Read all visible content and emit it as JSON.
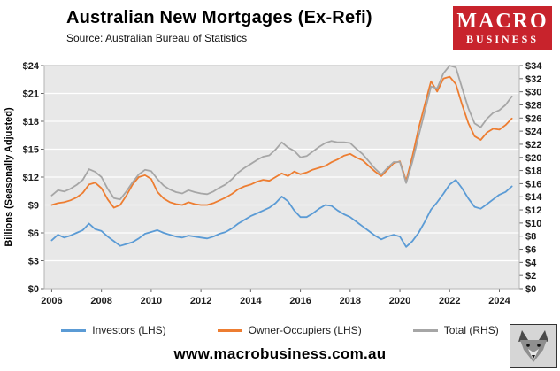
{
  "header": {
    "title": "Australian New Mortgages (Ex-Refi)",
    "source": "Source: Australian Bureau of Statistics",
    "logo": {
      "line1": "MACRO",
      "line2": "BUSINESS",
      "bg_color": "#c8232c",
      "text_color": "#ffffff"
    }
  },
  "chart_data": {
    "type": "line",
    "title": "Australian New Mortgages (Ex-Refi)",
    "ylabel_left": "Billions (Seasonally Adjusted)",
    "grid": true,
    "plot_bg": "#e8e8e8",
    "legend_position": "bottom",
    "x_range": [
      2005.7,
      2024.8
    ],
    "x_ticks": [
      2006,
      2008,
      2010,
      2012,
      2014,
      2016,
      2018,
      2020,
      2022,
      2024
    ],
    "x_tick_labels": [
      "2006",
      "2008",
      "2010",
      "2012",
      "2014",
      "2016",
      "2018",
      "2020",
      "2022",
      "2024"
    ],
    "left_axis": {
      "min": 0,
      "max": 24,
      "tick_step": 3,
      "ticks": [
        0,
        3,
        6,
        9,
        12,
        15,
        18,
        21,
        24
      ],
      "tick_labels": [
        "$0",
        "$3",
        "$6",
        "$9",
        "$12",
        "$15",
        "$18",
        "$21",
        "$24"
      ]
    },
    "right_axis": {
      "min": 0,
      "max": 34,
      "tick_step": 2,
      "ticks": [
        0,
        2,
        4,
        6,
        8,
        10,
        12,
        14,
        16,
        18,
        20,
        22,
        24,
        26,
        28,
        30,
        32,
        34
      ],
      "tick_labels": [
        "$0",
        "$2",
        "$4",
        "$6",
        "$8",
        "$10",
        "$12",
        "$14",
        "$16",
        "$18",
        "$20",
        "$22",
        "$24",
        "$26",
        "$28",
        "$30",
        "$32",
        "$34"
      ]
    },
    "x": [
      2006,
      2006.25,
      2006.5,
      2006.75,
      2007,
      2007.25,
      2007.5,
      2007.75,
      2008,
      2008.25,
      2008.5,
      2008.75,
      2009,
      2009.25,
      2009.5,
      2009.75,
      2010,
      2010.25,
      2010.5,
      2010.75,
      2011,
      2011.25,
      2011.5,
      2011.75,
      2012,
      2012.25,
      2012.5,
      2012.75,
      2013,
      2013.25,
      2013.5,
      2013.75,
      2014,
      2014.25,
      2014.5,
      2014.75,
      2015,
      2015.25,
      2015.5,
      2015.75,
      2016,
      2016.25,
      2016.5,
      2016.75,
      2017,
      2017.25,
      2017.5,
      2017.75,
      2018,
      2018.25,
      2018.5,
      2018.75,
      2019,
      2019.25,
      2019.5,
      2019.75,
      2020,
      2020.25,
      2020.5,
      2020.75,
      2021,
      2021.25,
      2021.5,
      2021.75,
      2022,
      2022.25,
      2022.5,
      2022.75,
      2023,
      2023.25,
      2023.5,
      2023.75,
      2024,
      2024.25,
      2024.5
    ],
    "series": [
      {
        "name": "Investors (LHS)",
        "axis": "left",
        "color": "#5b9bd5",
        "values": [
          5.2,
          5.8,
          5.5,
          5.7,
          6.0,
          6.3,
          7.0,
          6.4,
          6.2,
          5.6,
          5.1,
          4.6,
          4.8,
          5.0,
          5.4,
          5.9,
          6.1,
          6.3,
          6.0,
          5.8,
          5.6,
          5.5,
          5.7,
          5.6,
          5.5,
          5.4,
          5.6,
          5.9,
          6.1,
          6.5,
          7.0,
          7.4,
          7.8,
          8.1,
          8.4,
          8.7,
          9.2,
          9.9,
          9.4,
          8.4,
          7.7,
          7.7,
          8.1,
          8.6,
          9.0,
          8.9,
          8.4,
          8.0,
          7.7,
          7.2,
          6.7,
          6.2,
          5.7,
          5.3,
          5.6,
          5.8,
          5.6,
          4.5,
          5.1,
          6.0,
          7.2,
          8.5,
          9.3,
          10.2,
          11.2,
          11.7,
          10.8,
          9.7,
          8.8,
          8.6,
          9.1,
          9.6,
          10.1,
          10.4,
          11.0
        ]
      },
      {
        "name": "Owner-Occupiers (LHS)",
        "axis": "left",
        "color": "#ed7d31",
        "values": [
          9.0,
          9.2,
          9.3,
          9.5,
          9.8,
          10.3,
          11.2,
          11.4,
          10.8,
          9.6,
          8.7,
          9.0,
          10.0,
          11.2,
          12.0,
          12.2,
          11.8,
          10.4,
          9.7,
          9.3,
          9.1,
          9.0,
          9.3,
          9.1,
          9.0,
          9.0,
          9.2,
          9.5,
          9.8,
          10.2,
          10.7,
          11.0,
          11.2,
          11.5,
          11.7,
          11.6,
          12.0,
          12.4,
          12.1,
          12.6,
          12.3,
          12.5,
          12.8,
          13.0,
          13.2,
          13.6,
          13.9,
          14.3,
          14.5,
          14.1,
          13.8,
          13.2,
          12.6,
          12.1,
          12.8,
          13.5,
          13.7,
          11.6,
          14.2,
          17.2,
          19.8,
          22.3,
          21.2,
          22.6,
          22.8,
          22.0,
          19.8,
          17.8,
          16.4,
          16.0,
          16.8,
          17.2,
          17.1,
          17.6,
          18.3
        ]
      },
      {
        "name": "Total (RHS)",
        "axis": "right",
        "color": "#a6a6a6",
        "values": [
          14.2,
          15.0,
          14.8,
          15.2,
          15.8,
          16.6,
          18.2,
          17.8,
          17.0,
          15.2,
          13.8,
          13.6,
          14.8,
          16.2,
          17.4,
          18.1,
          17.9,
          16.7,
          15.7,
          15.1,
          14.7,
          14.5,
          15.0,
          14.7,
          14.5,
          14.4,
          14.8,
          15.4,
          15.9,
          16.7,
          17.7,
          18.4,
          19.0,
          19.6,
          20.1,
          20.3,
          21.2,
          22.3,
          21.5,
          21.0,
          20.0,
          20.2,
          20.9,
          21.6,
          22.2,
          22.5,
          22.3,
          22.3,
          22.2,
          21.3,
          20.5,
          19.4,
          18.3,
          17.4,
          18.4,
          19.3,
          19.3,
          16.1,
          19.3,
          23.2,
          27.0,
          30.8,
          30.5,
          32.8,
          34.0,
          33.7,
          30.6,
          27.5,
          25.2,
          24.6,
          25.9,
          26.8,
          27.2,
          28.0,
          29.3
        ]
      }
    ]
  },
  "footer": {
    "website": "www.macrobusiness.com.au"
  }
}
